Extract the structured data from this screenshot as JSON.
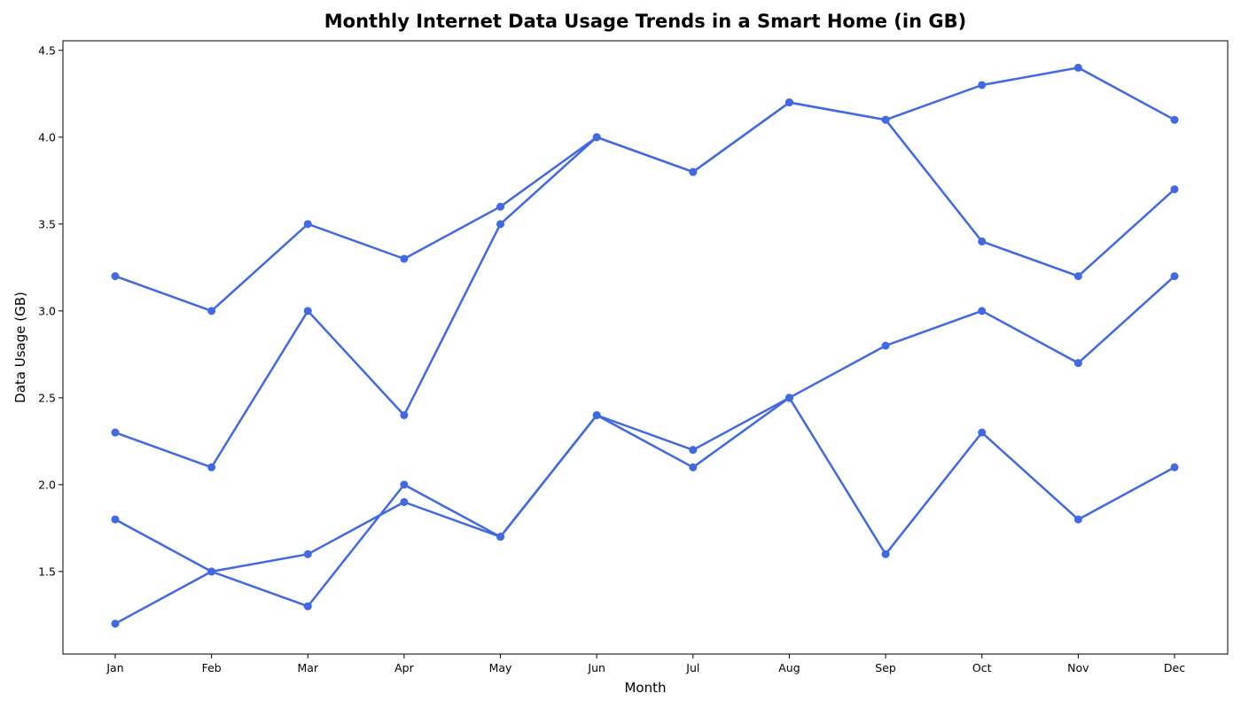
{
  "colors": {
    "series": "#4169e1"
  },
  "chart_data": {
    "type": "line",
    "title": "Monthly Internet Data Usage Trends in a Smart Home (in GB)",
    "xlabel": "Month",
    "ylabel": "Data Usage (GB)",
    "categories": [
      "Jan",
      "Feb",
      "Mar",
      "Apr",
      "May",
      "Jun",
      "Jul",
      "Aug",
      "Sep",
      "Oct",
      "Nov",
      "Dec"
    ],
    "yticks": [
      "1.5",
      "2.0",
      "2.5",
      "3.0",
      "3.5",
      "4.0",
      "4.5"
    ],
    "ylim": [
      1.025,
      4.555
    ],
    "grid": false,
    "legend": "none",
    "marker": "circle",
    "series": [
      {
        "values": [
          3.2,
          3.0,
          3.5,
          3.3,
          3.6,
          4.0,
          3.8,
          4.2,
          4.1,
          4.3,
          4.4,
          4.1
        ]
      },
      {
        "values": [
          2.3,
          2.1,
          3.0,
          2.4,
          3.5,
          4.0,
          3.8,
          4.2,
          4.1,
          3.4,
          3.2,
          3.7
        ]
      },
      {
        "values": [
          1.8,
          1.5,
          1.3,
          2.0,
          1.7,
          2.4,
          2.2,
          2.5,
          2.8,
          3.0,
          2.7,
          3.2
        ]
      },
      {
        "values": [
          1.2,
          1.5,
          1.6,
          1.9,
          1.7,
          2.4,
          2.1,
          2.5,
          1.6,
          2.3,
          1.8,
          2.1
        ]
      }
    ]
  }
}
